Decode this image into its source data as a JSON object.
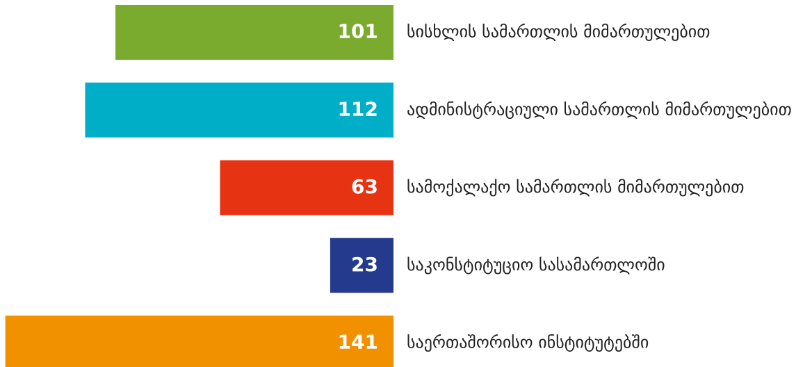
{
  "chart_data": {
    "type": "bar",
    "orientation": "horizontal",
    "categories": [
      "სისხლის სამართლის მიმართულებით",
      "ადმინისტრაციული სამართლის მიმართულებით",
      "სამოქალაქო სამართლის მიმართულებით",
      "საკონსტიტუციო სასამართლოში",
      "საერთაშორისო ინსტიტუტებში"
    ],
    "values": [
      101,
      112,
      63,
      23,
      141
    ],
    "colors": [
      "#7aab2e",
      "#00aec8",
      "#e63312",
      "#243a8c",
      "#f29100"
    ]
  }
}
